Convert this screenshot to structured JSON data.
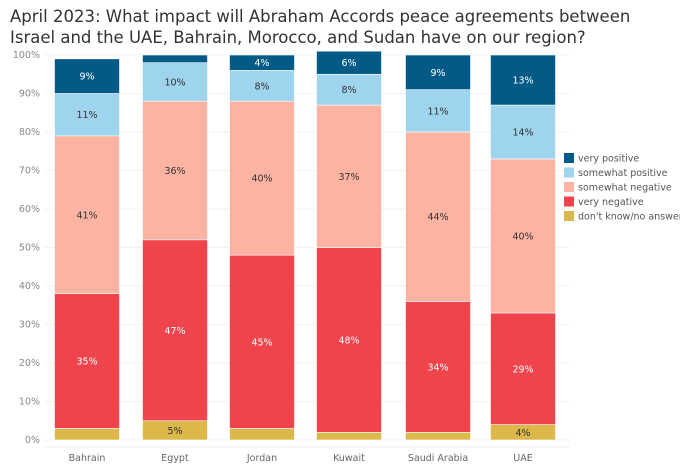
{
  "chart_data": {
    "type": "bar",
    "stacked": true,
    "title": "April 2023: What impact will Abraham Accords peace agreements between Israel and the UAE, Bahrain, Morocco, and Sudan have on our region?",
    "categories": [
      "Bahrain",
      "Egypt",
      "Jordan",
      "Kuwait",
      "Saudi Arabia",
      "UAE"
    ],
    "series": [
      {
        "name": "don't know/no answer",
        "color": "#dcb84a",
        "values": [
          3,
          5,
          3,
          2,
          2,
          4
        ],
        "labels": [
          "",
          "5%",
          "",
          "",
          "",
          "4%"
        ]
      },
      {
        "name": "very negative",
        "color": "#f0444c",
        "values": [
          35,
          47,
          45,
          48,
          34,
          29
        ],
        "labels": [
          "35%",
          "47%",
          "45%",
          "48%",
          "34%",
          "29%"
        ]
      },
      {
        "name": "somewhat negative",
        "color": "#fdb3a1",
        "values": [
          41,
          36,
          40,
          37,
          44,
          40
        ],
        "labels": [
          "41%",
          "36%",
          "40%",
          "37%",
          "44%",
          "40%"
        ]
      },
      {
        "name": "somewhat positive",
        "color": "#9fd4ee",
        "values": [
          11,
          10,
          8,
          8,
          11,
          14
        ],
        "labels": [
          "11%",
          "10%",
          "8%",
          "8%",
          "11%",
          "14%"
        ]
      },
      {
        "name": "very positive",
        "color": "#045a87",
        "values": [
          9,
          2,
          4,
          6,
          9,
          13
        ],
        "labels": [
          "9%",
          "",
          "4%",
          "6%",
          "9%",
          "13%"
        ]
      }
    ],
    "legend_order": [
      "very positive",
      "somewhat positive",
      "somewhat negative",
      "very negative",
      "don't know/no answer"
    ],
    "yticks": [
      "0%",
      "10%",
      "20%",
      "30%",
      "40%",
      "50%",
      "60%",
      "70%",
      "80%",
      "90%",
      "100%"
    ],
    "ylim": [
      0,
      100
    ],
    "grid": true,
    "legend_position": "right"
  }
}
